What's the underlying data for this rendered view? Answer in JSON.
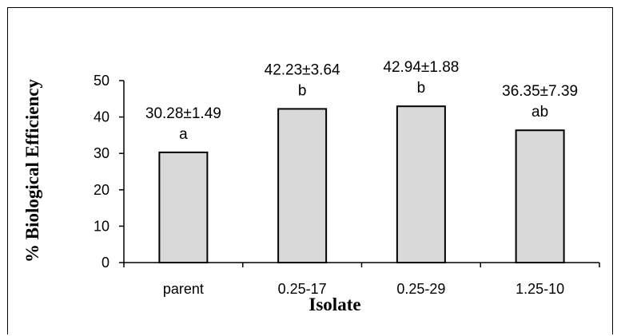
{
  "chart_data": {
    "type": "bar",
    "categories": [
      "parent",
      "0.25-17",
      "0.25-29",
      "1.25-10"
    ],
    "values": [
      30.28,
      42.23,
      42.94,
      36.35
    ],
    "errors": [
      1.49,
      3.64,
      1.88,
      7.39
    ],
    "value_labels": [
      "30.28±1.49",
      "42.23±3.64",
      "42.94±1.88",
      "36.35±7.39"
    ],
    "significance": [
      "a",
      "b",
      "b",
      "ab"
    ],
    "xlabel": "Isolate",
    "ylabel": "% Biological Efficiency",
    "ylim": [
      0,
      50
    ],
    "yticks": [
      0,
      10,
      20,
      30,
      40,
      50
    ],
    "grid": false,
    "bar_color": "#d9d9d9",
    "bar_edge_color": "#000000"
  }
}
